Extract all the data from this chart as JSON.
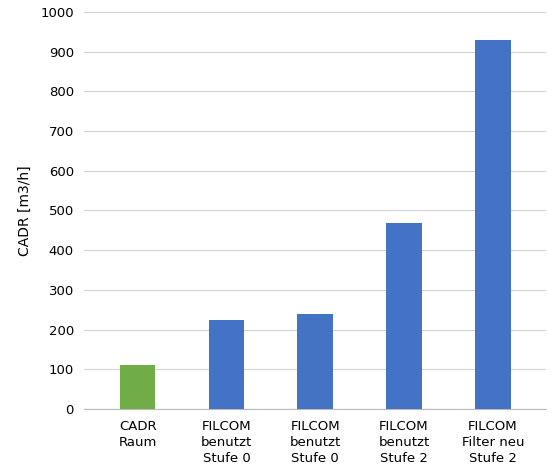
{
  "categories": [
    "CADR\nRaum",
    "FILCOM\nbenutzt\nStufe 0",
    "FILCOM\nbenutzt\nStufe 0",
    "FILCOM\nbenutzt\nStufe 2",
    "FILCOM\nFilter neu\nStufe 2"
  ],
  "values": [
    110,
    225,
    238,
    468,
    930
  ],
  "bar_colors": [
    "#70ad47",
    "#4472c4",
    "#4472c4",
    "#4472c4",
    "#4472c4"
  ],
  "ylabel": "CADR [m3/h]",
  "ylim": [
    0,
    1000
  ],
  "yticks": [
    0,
    100,
    200,
    300,
    400,
    500,
    600,
    700,
    800,
    900,
    1000
  ],
  "background_color": "#ffffff",
  "grid_color": "#d3d3d3",
  "bar_width": 0.4,
  "ylabel_fontsize": 10,
  "tick_fontsize": 9.5,
  "xlabel_fontsize": 9.5,
  "figsize": [
    5.53,
    4.72
  ],
  "dpi": 100
}
